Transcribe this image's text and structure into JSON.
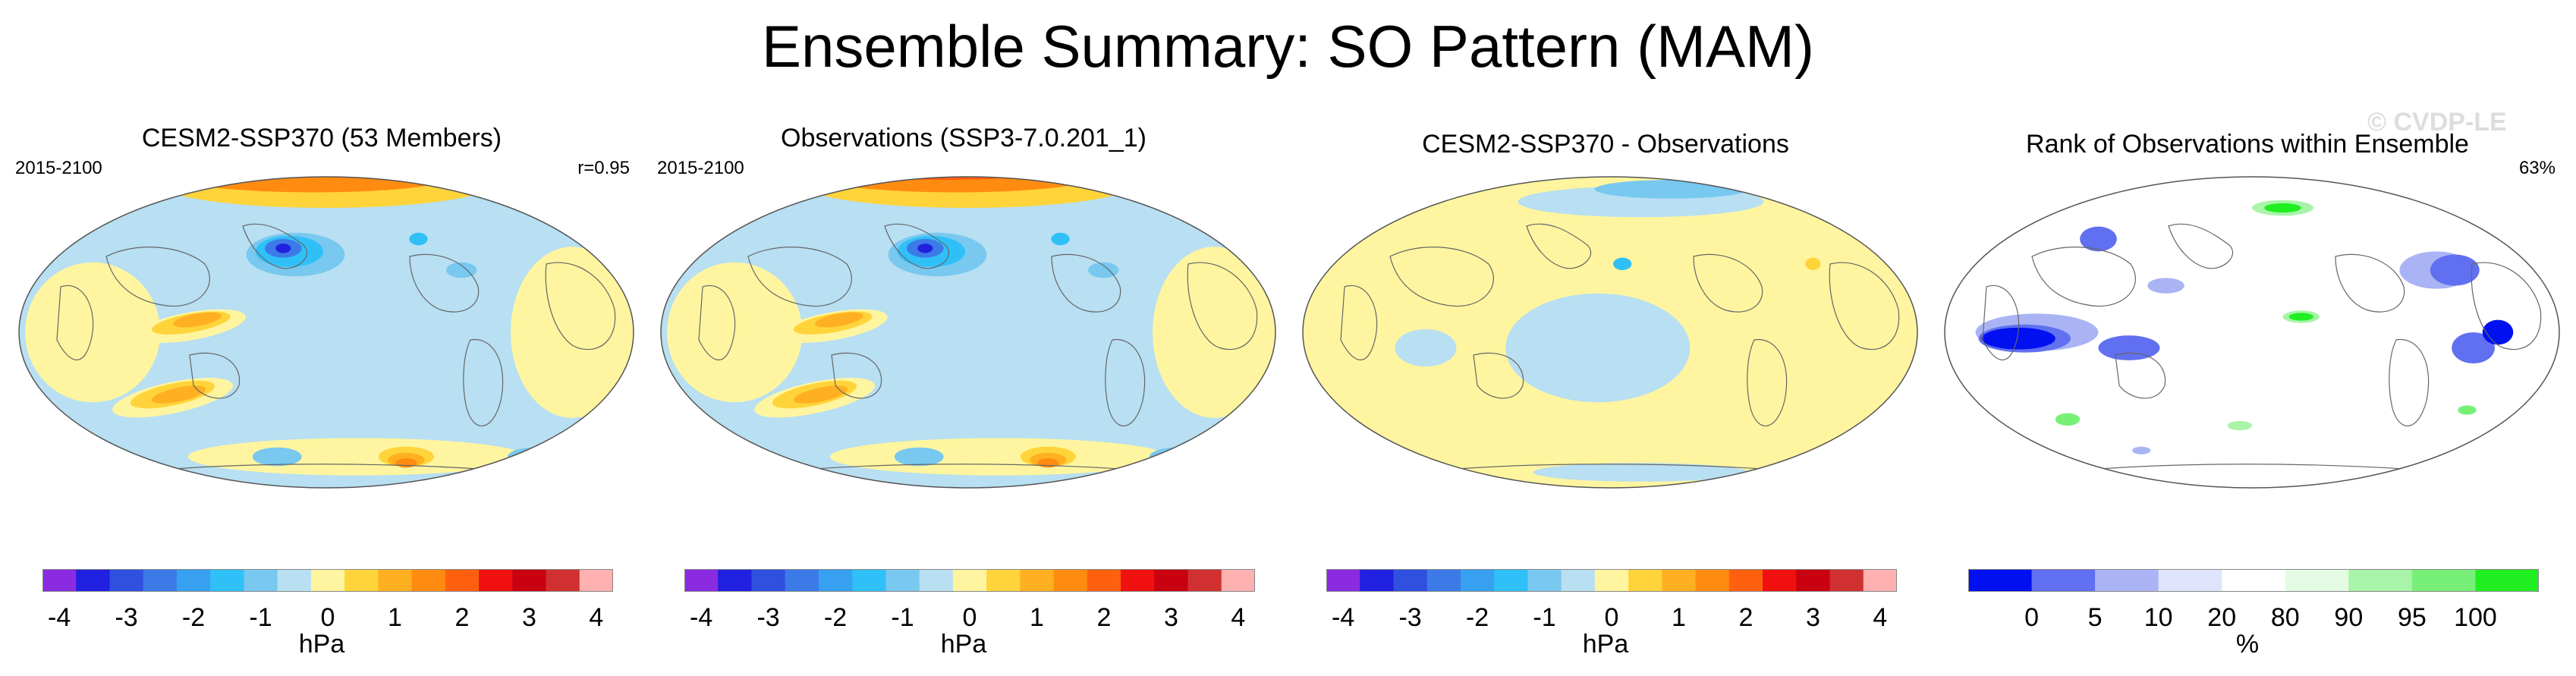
{
  "title": "Ensemble Summary: SO Pattern (MAM)",
  "watermark": "© CVDP-LE",
  "panels": [
    {
      "title": "CESM2-SSP370 (53 Members)",
      "left_label": "2015-2100",
      "right_label": "r=0.95",
      "unit": "hPa",
      "ticks": [
        "-4",
        "-3",
        "-2",
        "-1",
        "0",
        "1",
        "2",
        "3",
        "4"
      ]
    },
    {
      "title": "Observations (SSP3-7.0.201_1)",
      "left_label": "2015-2100",
      "right_label": "",
      "unit": "hPa",
      "ticks": [
        "-4",
        "-3",
        "-2",
        "-1",
        "0",
        "1",
        "2",
        "3",
        "4"
      ]
    },
    {
      "title": "CESM2-SSP370 - Observations",
      "left_label": "",
      "right_label": "",
      "unit": "hPa",
      "ticks": [
        "-4",
        "-3",
        "-2",
        "-1",
        "0",
        "1",
        "2",
        "3",
        "4"
      ]
    },
    {
      "title": "Rank of Observations within Ensemble",
      "left_label": "",
      "right_label": "63%",
      "unit": "%",
      "ticks": [
        "0",
        "5",
        "10",
        "20",
        "80",
        "90",
        "95",
        "100"
      ]
    }
  ],
  "chart_data": [
    {
      "type": "heatmap",
      "title": "CESM2-SSP370 (53 Members)",
      "period": "2015-2100",
      "pattern_correlation": 0.95,
      "units": "hPa",
      "colorbar_range": [
        -4.5,
        4.5
      ],
      "contour_interval": 0.5,
      "features": [
        "positive anomaly over Arctic up to ~2.5",
        "negative center near Aleutians ~-3.5",
        "positive bands over Indian Ocean / Australia ~1.5",
        "positive center south of South America ~2.5",
        "negative centers over Southern Ocean ~-1.5"
      ]
    },
    {
      "type": "heatmap",
      "title": "Observations (SSP3-7.0.201_1)",
      "period": "2015-2100",
      "units": "hPa",
      "colorbar_range": [
        -4.5,
        4.5
      ],
      "contour_interval": 0.5,
      "features": [
        "positive anomaly over Arctic up to ~3",
        "negative center near Aleutians ~-3.5",
        "positive bands over Indian Ocean / Australia ~1.5",
        "positive center south of South America ~2.5"
      ]
    },
    {
      "type": "heatmap",
      "title": "CESM2-SSP370 - Observations",
      "units": "hPa",
      "colorbar_range": [
        -4.5,
        4.5
      ],
      "contour_interval": 0.5,
      "features": [
        "differences mostly between -0.5 and 0.5",
        "negative over Arctic ~-1"
      ]
    },
    {
      "type": "heatmap",
      "title": "Rank of Observations within Ensemble",
      "units": "%",
      "percent_of_domain_in_10_90": "63%",
      "levels": [
        0,
        5,
        10,
        20,
        80,
        90,
        95,
        100
      ],
      "features": [
        "low ranks (blue) over tropical Indian Ocean and Atlantic",
        "high ranks (green) over Siberia and central Pacific"
      ]
    }
  ],
  "colors": {
    "hpa_scale": [
      "#8a2be2",
      "#2020e0",
      "#3050e0",
      "#3c7ae8",
      "#38a0f0",
      "#30c0f8",
      "#78c8f0",
      "#b8dff2",
      "#fff5a0",
      "#ffd43b",
      "#ffb020",
      "#ff8c10",
      "#ff6010",
      "#f01010",
      "#c80010",
      "#d03030",
      "#ffb0b0"
    ],
    "rank_scale": [
      "#0010f0",
      "#6070f0",
      "#aab4f4",
      "#dfe3fc",
      "#ffffff",
      "#e4fbe4",
      "#a8f4a8",
      "#78f078",
      "#20ee20"
    ]
  }
}
